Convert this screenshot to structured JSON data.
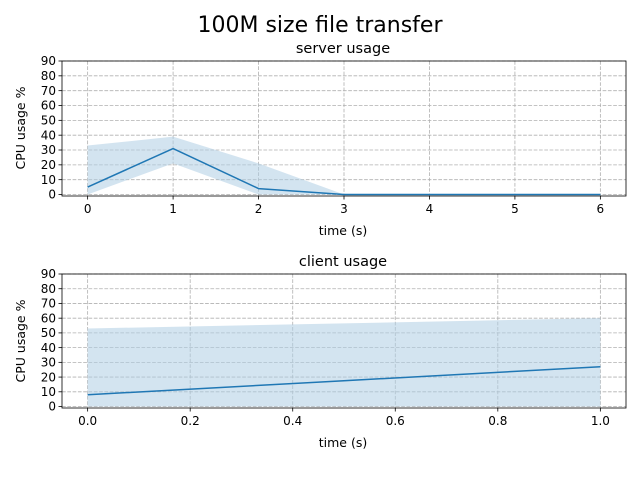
{
  "figure": {
    "title": "100M size file transfer"
  },
  "chart_data": [
    {
      "type": "line",
      "title": "server usage",
      "xlabel": "time (s)",
      "ylabel": "CPU usage %",
      "xlim": [
        -0.3,
        6.3
      ],
      "ylim": [
        -1,
        90
      ],
      "xticks": [
        0,
        1,
        2,
        3,
        4,
        5,
        6
      ],
      "xtick_labels": [
        "0",
        "1",
        "2",
        "3",
        "4",
        "5",
        "6"
      ],
      "yticks": [
        0,
        10,
        20,
        30,
        40,
        50,
        60,
        70,
        80,
        90
      ],
      "ytick_labels": [
        "0",
        "10",
        "20",
        "30",
        "40",
        "50",
        "60",
        "70",
        "80",
        "90"
      ],
      "grid": true,
      "series": [
        {
          "x": [
            0,
            1,
            2,
            3,
            4,
            5,
            6
          ],
          "values": [
            5,
            31,
            4,
            0,
            0,
            0,
            0
          ],
          "band_upper": [
            33,
            39,
            21,
            0,
            0,
            0,
            0
          ],
          "band_lower": [
            0,
            21,
            0,
            0,
            0,
            0,
            0
          ],
          "color": "#1f77b4",
          "band_color": "#aecde3"
        }
      ]
    },
    {
      "type": "line",
      "title": "client usage",
      "xlabel": "time (s)",
      "ylabel": "CPU usage %",
      "xlim": [
        -0.05,
        1.05
      ],
      "ylim": [
        -1,
        90
      ],
      "xticks": [
        0,
        0.2,
        0.4,
        0.6,
        0.8,
        1.0
      ],
      "xtick_labels": [
        "0.0",
        "0.2",
        "0.4",
        "0.6",
        "0.8",
        "1.0"
      ],
      "yticks": [
        0,
        10,
        20,
        30,
        40,
        50,
        60,
        70,
        80,
        90
      ],
      "ytick_labels": [
        "0",
        "10",
        "20",
        "30",
        "40",
        "50",
        "60",
        "70",
        "80",
        "90"
      ],
      "grid": true,
      "series": [
        {
          "x": [
            0,
            1
          ],
          "values": [
            8,
            27
          ],
          "band_upper": [
            53,
            60
          ],
          "band_lower": [
            0,
            0
          ],
          "color": "#1f77b4",
          "band_color": "#aecde3"
        }
      ]
    }
  ]
}
